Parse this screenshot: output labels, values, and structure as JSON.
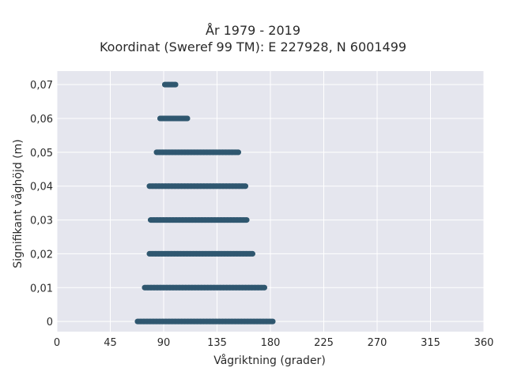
{
  "chart_data": {
    "type": "scatter",
    "title_line1": "År 1979 - 2019",
    "title_line2": "Koordinat (Sweref 99 TM): E 227928, N 6001499",
    "xlabel": "Vågriktning (grader)",
    "ylabel": "Signifikant våghöjd (m)",
    "xlim": [
      0,
      360
    ],
    "ylim": [
      -0.003,
      0.074
    ],
    "x_ticks": [
      0,
      45,
      90,
      135,
      180,
      225,
      270,
      315,
      360
    ],
    "y_ticks": [
      0,
      0.01,
      0.02,
      0.03,
      0.04,
      0.05,
      0.06,
      0.07
    ],
    "y_tick_labels": [
      "0",
      "0,01",
      "0,02",
      "0,03",
      "0,04",
      "0,05",
      "0,06",
      "0,07"
    ],
    "grid": true,
    "colors": {
      "plot_bg": "#e5e6ee",
      "grid": "#ffffff",
      "marker": "#2f5770"
    },
    "series": [
      {
        "values": [
          {
            "y": 0,
            "x_min": 68,
            "x_max": 182
          },
          {
            "y": 0.01,
            "x_min": 74,
            "x_max": 175
          },
          {
            "y": 0.02,
            "x_min": 78,
            "x_max": 165
          },
          {
            "y": 0.03,
            "x_min": 79,
            "x_max": 160
          },
          {
            "y": 0.04,
            "x_min": 78,
            "x_max": 159
          },
          {
            "y": 0.05,
            "x_min": 84,
            "x_max": 153
          },
          {
            "y": 0.06,
            "x_min": 87,
            "x_max": 110
          },
          {
            "y": 0.07,
            "x_min": 91,
            "x_max": 100
          }
        ]
      }
    ]
  }
}
